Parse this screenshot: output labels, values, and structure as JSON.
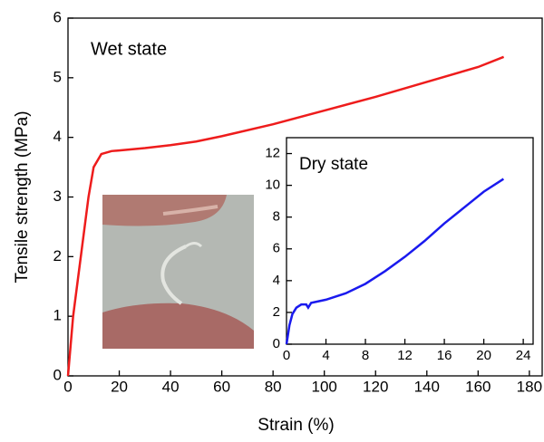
{
  "chart_data": [
    {
      "type": "line",
      "xlabel": "Strain (%)",
      "ylabel": "Tensile strength (MPa)",
      "annotation": "Wet state",
      "xlim": [
        0,
        185
      ],
      "ylim": [
        0,
        6
      ],
      "xticks": [
        0,
        20,
        40,
        60,
        80,
        100,
        120,
        140,
        160,
        180
      ],
      "yticks": [
        0,
        1,
        2,
        3,
        4,
        5,
        6
      ],
      "series": [
        {
          "color": "#ee1c1c",
          "x": [
            0,
            2,
            5,
            8,
            10,
            13,
            17,
            20,
            30,
            40,
            50,
            60,
            80,
            100,
            120,
            140,
            160,
            170
          ],
          "values": [
            0,
            1.0,
            2.0,
            3.0,
            3.5,
            3.72,
            3.77,
            3.78,
            3.82,
            3.87,
            3.93,
            4.02,
            4.22,
            4.45,
            4.68,
            4.93,
            5.18,
            5.35
          ]
        }
      ]
    },
    {
      "type": "line",
      "annotation": "Dry state",
      "xlim": [
        0,
        25
      ],
      "ylim": [
        0,
        13
      ],
      "xticks": [
        0,
        4,
        8,
        12,
        16,
        20,
        24
      ],
      "yticks": [
        0,
        2,
        4,
        6,
        8,
        10,
        12
      ],
      "series": [
        {
          "color": "#1a1aee",
          "x": [
            0,
            0.3,
            0.6,
            1,
            1.5,
            2,
            2.2,
            2.5,
            4,
            6,
            8,
            10,
            12,
            14,
            16,
            18,
            20,
            22
          ],
          "values": [
            0,
            1.2,
            1.9,
            2.3,
            2.5,
            2.5,
            2.3,
            2.6,
            2.8,
            3.2,
            3.8,
            4.6,
            5.5,
            6.5,
            7.6,
            8.6,
            9.6,
            10.4
          ]
        }
      ]
    }
  ]
}
